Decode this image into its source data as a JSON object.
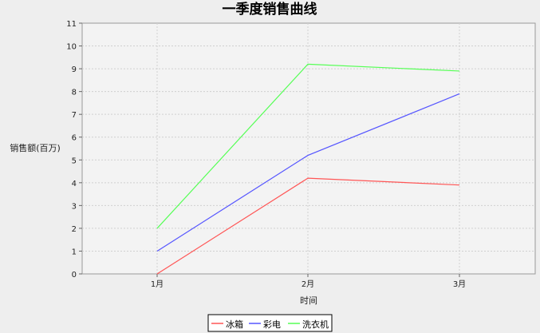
{
  "chart_data": {
    "type": "line",
    "title": "一季度销售曲线",
    "xlabel": "时间",
    "ylabel": "销售额(百万)",
    "categories": [
      "1月",
      "2月",
      "3月"
    ],
    "ylim": [
      0,
      11
    ],
    "yticks": [
      "0",
      "1",
      "2",
      "3",
      "4",
      "5",
      "6",
      "7",
      "8",
      "9",
      "10",
      "11"
    ],
    "grid": true,
    "legend_position": "bottom",
    "series": [
      {
        "name": "冰箱",
        "color": "#ff5555",
        "values": [
          0,
          4.2,
          3.9
        ]
      },
      {
        "name": "彩电",
        "color": "#5555ff",
        "values": [
          1,
          5.2,
          7.9
        ]
      },
      {
        "name": "洗衣机",
        "color": "#55ff55",
        "values": [
          2,
          9.2,
          8.9
        ]
      }
    ]
  }
}
